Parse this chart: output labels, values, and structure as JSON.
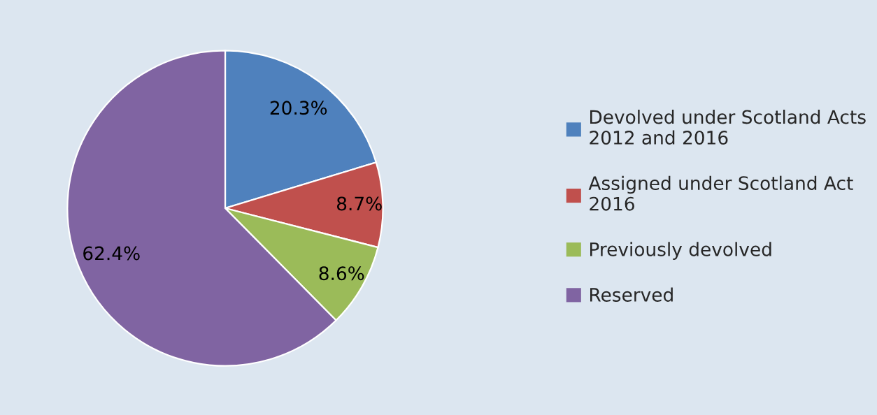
{
  "chart_data": {
    "type": "pie",
    "categories": [
      "Devolved under Scotland Acts 2012 and 2016",
      "Assigned under Scotland Act 2016",
      "Previously devolved",
      "Reserved"
    ],
    "values": [
      20.3,
      8.7,
      8.6,
      62.4
    ],
    "value_labels": [
      "20.3%",
      "8.7%",
      "8.6%",
      "62.4%"
    ],
    "colors": [
      "#4f81bd",
      "#c0504d",
      "#9bbb59",
      "#8064a2"
    ],
    "legend": "right"
  }
}
